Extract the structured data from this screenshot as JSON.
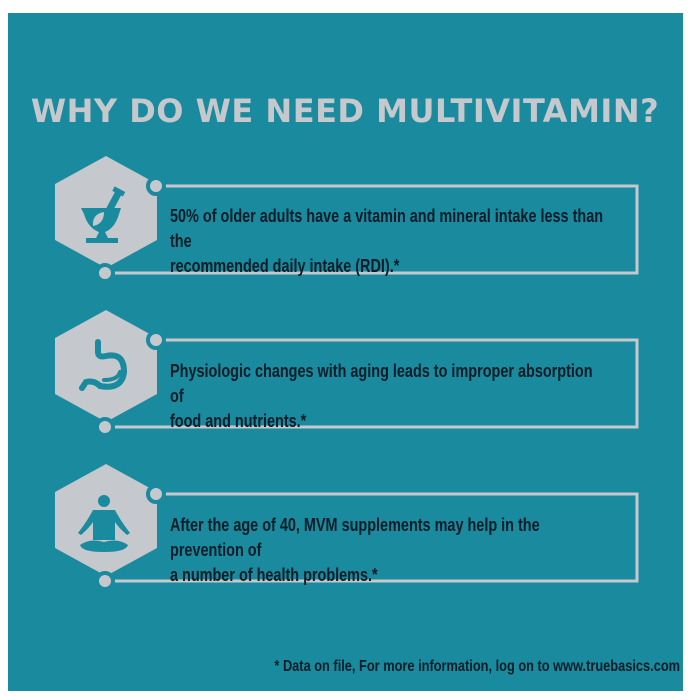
{
  "title": "WHY DO WE NEED MULTIVITAMIN?",
  "colors": {
    "background": "#1a8a9e",
    "accent": "#c5c8cc",
    "text": "#0b1d28"
  },
  "items": [
    {
      "icon": "mortar-pestle-icon",
      "text_line1": "50% of older adults have a vitamin and mineral intake less than the",
      "text_line2": "recommended daily intake (RDI).*"
    },
    {
      "icon": "stomach-icon",
      "text_line1": "Physiologic changes with aging leads to improper absorption of",
      "text_line2": "food and nutrients.*"
    },
    {
      "icon": "meditation-person-icon",
      "text_line1": "After the age of 40, MVM supplements may help in the prevention of",
      "text_line2": "a number of health problems.*"
    }
  ],
  "footnote": "* Data on file, For more information, log on to www.truebasics.com"
}
